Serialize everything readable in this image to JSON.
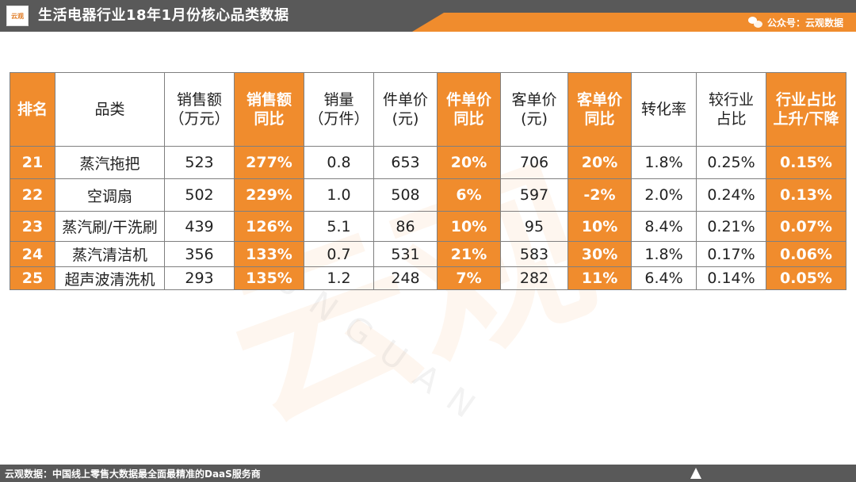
{
  "header": {
    "logo_text": "云观",
    "title": "生活电器行业18年1月份核心品类数据",
    "wechat_label": "公众号：云观数据"
  },
  "watermark": {
    "big": "云观",
    "small": "YUNGUAN"
  },
  "table": {
    "headers": [
      {
        "line1": "排名",
        "line2": ""
      },
      {
        "line1": "品类",
        "line2": ""
      },
      {
        "line1": "销售额",
        "line2": "（万元）"
      },
      {
        "line1": "销售额",
        "line2": "同比"
      },
      {
        "line1": "销量",
        "line2": "（万件）"
      },
      {
        "line1": "件单价",
        "line2": "(元)"
      },
      {
        "line1": "件单价",
        "line2": "同比"
      },
      {
        "line1": "客单价",
        "line2": "(元)"
      },
      {
        "line1": "客单价",
        "line2": "同比"
      },
      {
        "line1": "转化率",
        "line2": ""
      },
      {
        "line1": "较行业",
        "line2": "占比"
      },
      {
        "line1": "行业占比",
        "line2": "上升/下降"
      }
    ],
    "rows": [
      [
        "21",
        "蒸汽拖把",
        "523",
        "277%",
        "0.8",
        "653",
        "20%",
        "706",
        "20%",
        "1.8%",
        "0.25%",
        "0.15%"
      ],
      [
        "22",
        "空调扇",
        "502",
        "229%",
        "1.0",
        "508",
        "6%",
        "597",
        "-2%",
        "2.0%",
        "0.24%",
        "0.13%"
      ],
      [
        "23",
        "蒸汽刷/干洗刷",
        "439",
        "126%",
        "5.1",
        "86",
        "10%",
        "95",
        "10%",
        "8.4%",
        "0.21%",
        "0.07%"
      ],
      [
        "24",
        "蒸汽清洁机",
        "356",
        "133%",
        "0.7",
        "531",
        "21%",
        "583",
        "30%",
        "1.8%",
        "0.17%",
        "0.06%"
      ],
      [
        "25",
        "超声波清洗机",
        "293",
        "135%",
        "1.2",
        "248",
        "7%",
        "282",
        "11%",
        "6.4%",
        "0.14%",
        "0.05%"
      ]
    ]
  },
  "footer": {
    "text": "云观数据：中国线上零售大数据最全面最精准的DaaS服务商"
  },
  "colors": {
    "accent": "#f08c2d",
    "bar": "#595959"
  }
}
